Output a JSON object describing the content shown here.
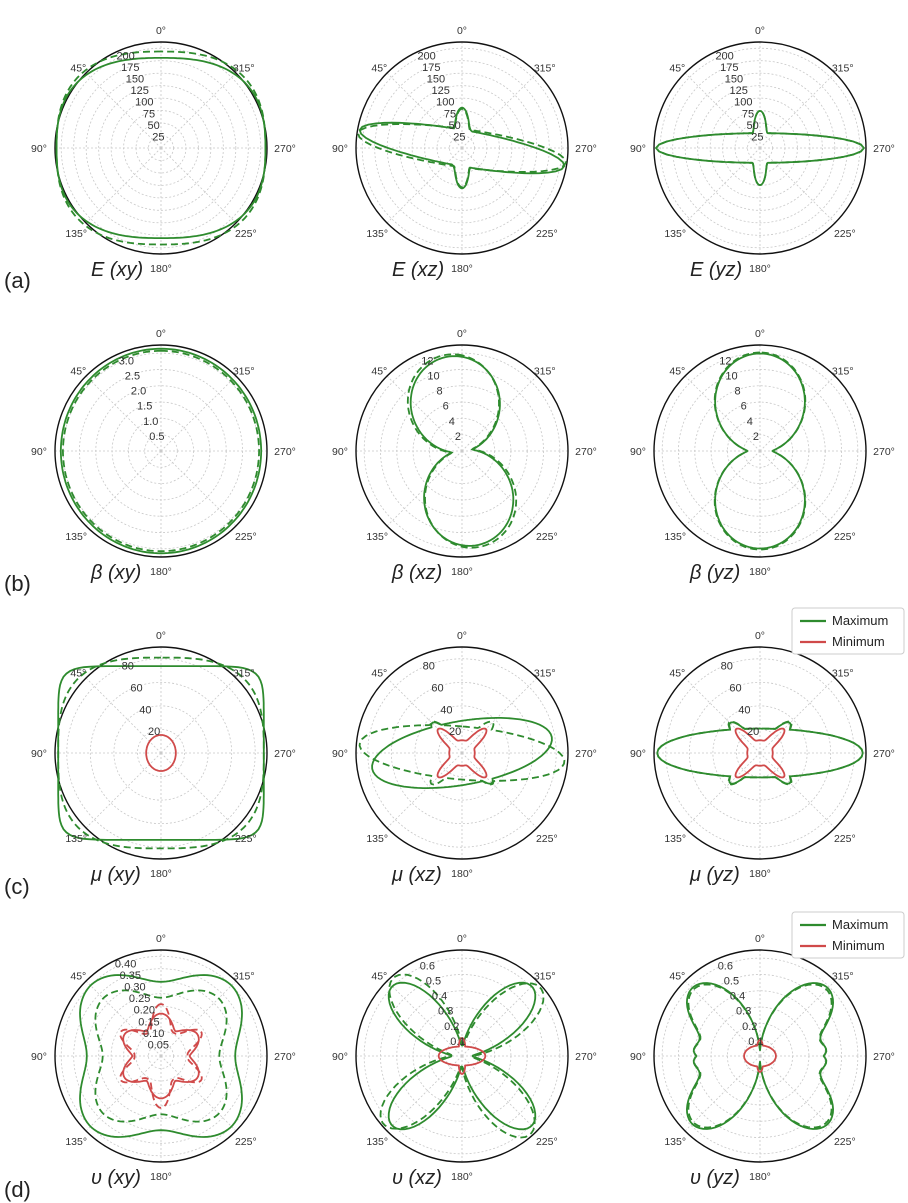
{
  "angle_labels": [
    "0°",
    "45°",
    "90°",
    "135°",
    "180°",
    "225°",
    "270°",
    "315°"
  ],
  "legend": {
    "maximum": "Maximum",
    "minimum": "Minimum",
    "maximum_color": "#2e8b2e",
    "minimum_color": "#d04a4a"
  },
  "row_labels": [
    "(a)",
    "(b)",
    "(c)",
    "(d)"
  ],
  "chart_data": [
    {
      "type": "polar",
      "row": "a",
      "title": "E (xy)",
      "rticks": [
        "25",
        "50",
        "75",
        "100",
        "125",
        "150",
        "175",
        "200"
      ],
      "rmax": 215,
      "grid": true,
      "series": [
        {
          "name": "Maximum",
          "style": "solid",
          "shape": "diamond",
          "r_at_0": 183,
          "r_at_90": 205
        },
        {
          "name": "Maximum",
          "style": "dashed",
          "shape": "diamond",
          "r_at_0": 196,
          "r_at_90": 205
        }
      ]
    },
    {
      "type": "polar",
      "row": "a",
      "title": "E (xz)",
      "rticks": [
        "25",
        "50",
        "75",
        "100",
        "125",
        "150",
        "175",
        "200"
      ],
      "rmax": 215,
      "grid": true,
      "series": [
        {
          "name": "Maximum",
          "style": "solid",
          "shape": "tilted-lobe",
          "r_peak": 205,
          "r_at_0": 62
        },
        {
          "name": "Maximum",
          "style": "dashed",
          "shape": "tilted-lobe",
          "r_peak": 205,
          "r_at_0": 62
        }
      ]
    },
    {
      "type": "polar",
      "row": "a",
      "title": "E (yz)",
      "rticks": [
        "25",
        "50",
        "75",
        "100",
        "125",
        "150",
        "175",
        "200"
      ],
      "rmax": 215,
      "grid": true,
      "series": [
        {
          "name": "Maximum",
          "style": "solid",
          "shape": "horizontal-lobe",
          "r_peak": 205,
          "r_at_0": 62
        },
        {
          "name": "Maximum",
          "style": "dashed",
          "shape": "horizontal-lobe",
          "r_peak": 205,
          "r_at_0": 62
        }
      ]
    },
    {
      "type": "polar",
      "row": "b",
      "title": "β (xy)",
      "rticks": [
        "0.5",
        "1.0",
        "1.5",
        "2.0",
        "2.5",
        "3.0"
      ],
      "rmax": 3.5,
      "grid": true,
      "series": [
        {
          "name": "Maximum",
          "style": "solid",
          "shape": "circle",
          "r": 3.33
        },
        {
          "name": "Maximum",
          "style": "dashed",
          "shape": "circle",
          "r": 3.28
        }
      ]
    },
    {
      "type": "polar",
      "row": "b",
      "title": "β (xz)",
      "rticks": [
        "2",
        "4",
        "6",
        "8",
        "10",
        "12"
      ],
      "rmax": 14,
      "grid": true,
      "series": [
        {
          "name": "Maximum",
          "style": "solid",
          "shape": "peanut",
          "r_at_0": 12.5,
          "r_at_90": 1.5
        },
        {
          "name": "Maximum",
          "style": "dashed",
          "shape": "peanut",
          "r_at_0": 12.5,
          "r_at_90": 1.5
        }
      ]
    },
    {
      "type": "polar",
      "row": "b",
      "title": "β (yz)",
      "rticks": [
        "2",
        "4",
        "6",
        "8",
        "10",
        "12"
      ],
      "rmax": 14,
      "grid": true,
      "series": [
        {
          "name": "Maximum",
          "style": "solid",
          "shape": "peanut",
          "r_at_0": 12.5,
          "r_at_90": 1.5
        },
        {
          "name": "Maximum",
          "style": "dashed",
          "shape": "peanut",
          "r_at_0": 12.5,
          "r_at_90": 1.5
        }
      ]
    },
    {
      "type": "polar",
      "row": "c",
      "title": "μ (xy)",
      "rticks": [
        "20",
        "40",
        "60",
        "80"
      ],
      "rmax": 100,
      "grid": true,
      "series": [
        {
          "name": "Maximum",
          "style": "solid",
          "shape": "rounded-rect",
          "r_at_0": 82,
          "r_at_90": 97
        },
        {
          "name": "Maximum",
          "style": "dashed",
          "shape": "rounded-rect",
          "r_at_0": 90,
          "r_at_90": 97
        },
        {
          "name": "Minimum",
          "style": "solid",
          "shape": "circle",
          "r": 15
        }
      ]
    },
    {
      "type": "polar",
      "row": "c",
      "title": "μ (xz)",
      "rticks": [
        "20",
        "40",
        "60",
        "80"
      ],
      "rmax": 100,
      "grid": true,
      "series": [
        {
          "name": "Maximum",
          "style": "solid",
          "shape": "ellipse-plus-lobes",
          "r_peak": 85
        },
        {
          "name": "Maximum",
          "style": "dashed",
          "shape": "ellipse-plus-lobes",
          "r_peak": 95
        },
        {
          "name": "Minimum",
          "style": "solid",
          "shape": "star",
          "r_peak": 30
        }
      ]
    },
    {
      "type": "polar",
      "row": "c",
      "title": "μ (yz)",
      "rticks": [
        "20",
        "40",
        "60",
        "80"
      ],
      "rmax": 100,
      "grid": true,
      "series": [
        {
          "name": "Maximum",
          "style": "solid",
          "shape": "ellipse-plus-lobes",
          "r_peak": 95
        },
        {
          "name": "Maximum",
          "style": "dashed",
          "shape": "ellipse-plus-lobes",
          "r_peak": 95
        },
        {
          "name": "Minimum",
          "style": "solid",
          "shape": "star",
          "r_peak": 30
        }
      ]
    },
    {
      "type": "polar",
      "row": "d",
      "title": "υ (xy)",
      "rticks": [
        "0.05",
        "0.10",
        "0.15",
        "0.20",
        "0.25",
        "0.30",
        "0.35",
        "0.40"
      ],
      "rmax": 0.47,
      "grid": true,
      "series": [
        {
          "name": "Maximum",
          "style": "solid",
          "shape": "4-lobe",
          "r_peak": 0.43
        },
        {
          "name": "Maximum",
          "style": "dashed",
          "shape": "4-lobe",
          "r_peak": 0.36
        },
        {
          "name": "Minimum",
          "style": "solid",
          "shape": "6-point-star",
          "r_peak": 0.19
        },
        {
          "name": "Minimum",
          "style": "dashed",
          "shape": "6-point-star",
          "r_peak": 0.24
        }
      ]
    },
    {
      "type": "polar",
      "row": "d",
      "title": "υ (xz)",
      "rticks": [
        "0.1",
        "0.2",
        "0.3",
        "0.4",
        "0.5",
        "0.6"
      ],
      "rmax": 0.7,
      "grid": true,
      "series": [
        {
          "name": "Maximum",
          "style": "solid",
          "shape": "x-lobes",
          "r_peak": 0.65
        },
        {
          "name": "Maximum",
          "style": "dashed",
          "shape": "x-lobes",
          "r_peak": 0.68
        },
        {
          "name": "Minimum",
          "style": "solid",
          "shape": "flat-star",
          "r_peak": 0.14
        }
      ]
    },
    {
      "type": "polar",
      "row": "d",
      "title": "υ (yz)",
      "rticks": [
        "0.1",
        "0.2",
        "0.3",
        "0.4",
        "0.5",
        "0.6"
      ],
      "rmax": 0.7,
      "grid": true,
      "series": [
        {
          "name": "Maximum",
          "style": "solid",
          "shape": "butterfly",
          "r_peak": 0.67
        },
        {
          "name": "Maximum",
          "style": "dashed",
          "shape": "butterfly",
          "r_peak": 0.67
        },
        {
          "name": "Minimum",
          "style": "solid",
          "shape": "flat-star",
          "r_peak": 0.08
        }
      ]
    }
  ]
}
